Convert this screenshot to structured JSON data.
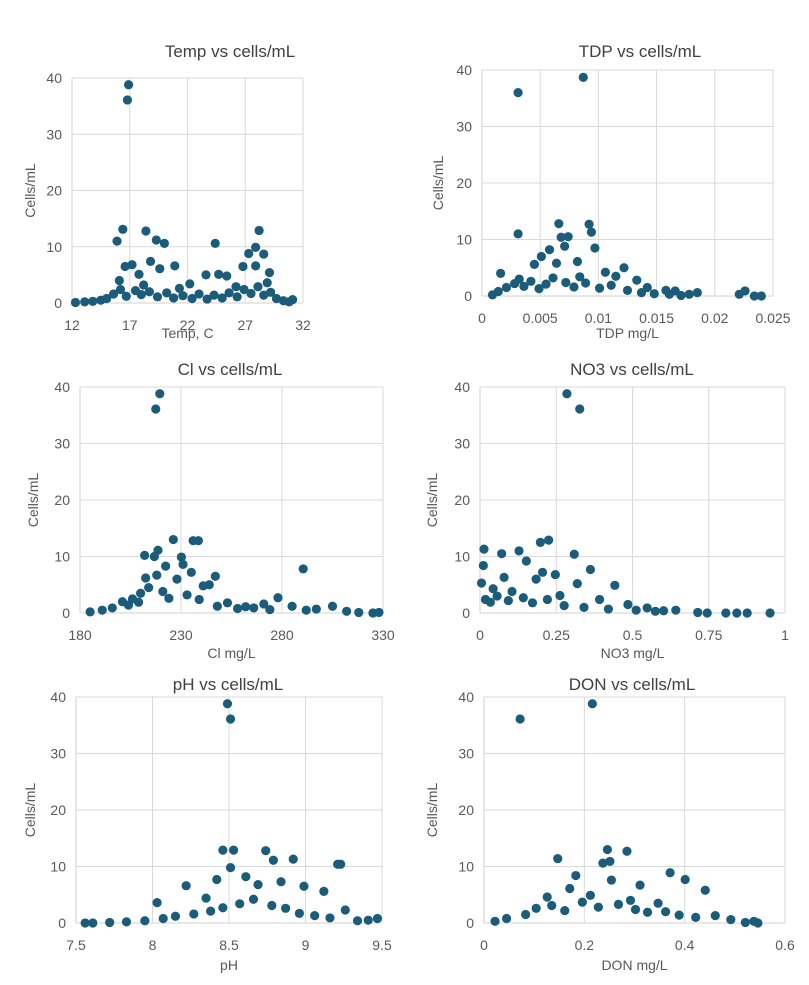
{
  "marker_color": "#1a5c7a",
  "grid_color": "#d9d9d9",
  "chart_data": [
    {
      "type": "scatter",
      "title": "Temp vs cells/mL",
      "xlabel": "Temp, C",
      "ylabel": "Cells/mL",
      "xlim": [
        12,
        32
      ],
      "ylim": [
        0,
        40
      ],
      "xticks": [
        12,
        17,
        22,
        27,
        32
      ],
      "yticks": [
        0,
        10,
        20,
        30,
        40
      ],
      "points": [
        [
          16.9,
          38.8
        ],
        [
          16.8,
          36.1
        ],
        [
          16.4,
          13.1
        ],
        [
          15.9,
          11.0
        ],
        [
          18.4,
          12.8
        ],
        [
          19.3,
          11.2
        ],
        [
          20.0,
          10.6
        ],
        [
          24.4,
          10.6
        ],
        [
          28.2,
          12.9
        ],
        [
          27.9,
          9.9
        ],
        [
          28.6,
          8.7
        ],
        [
          27.3,
          8.8
        ],
        [
          29.1,
          5.4
        ],
        [
          16.6,
          6.5
        ],
        [
          17.2,
          6.8
        ],
        [
          18.8,
          7.4
        ],
        [
          19.6,
          6.1
        ],
        [
          20.9,
          6.6
        ],
        [
          23.6,
          5.0
        ],
        [
          24.7,
          5.1
        ],
        [
          25.4,
          4.8
        ],
        [
          26.8,
          6.5
        ],
        [
          27.9,
          6.6
        ],
        [
          16.1,
          4.0
        ],
        [
          17.8,
          5.1
        ],
        [
          18.2,
          3.2
        ],
        [
          21.3,
          2.6
        ],
        [
          22.2,
          3.4
        ],
        [
          26.2,
          2.9
        ],
        [
          28.9,
          3.6
        ],
        [
          12.3,
          0.1
        ],
        [
          13.1,
          0.2
        ],
        [
          13.8,
          0.3
        ],
        [
          14.5,
          0.5
        ],
        [
          15.0,
          0.8
        ],
        [
          15.6,
          1.6
        ],
        [
          16.2,
          2.4
        ],
        [
          16.7,
          1.2
        ],
        [
          17.5,
          2.2
        ],
        [
          18.0,
          1.5
        ],
        [
          18.7,
          2.0
        ],
        [
          19.4,
          1.1
        ],
        [
          20.2,
          1.8
        ],
        [
          20.8,
          0.9
        ],
        [
          21.6,
          1.3
        ],
        [
          22.4,
          0.8
        ],
        [
          23.0,
          1.6
        ],
        [
          23.7,
          0.7
        ],
        [
          24.3,
          1.4
        ],
        [
          25.0,
          0.9
        ],
        [
          25.6,
          1.8
        ],
        [
          26.3,
          1.1
        ],
        [
          26.9,
          2.4
        ],
        [
          27.5,
          1.7
        ],
        [
          28.1,
          2.9
        ],
        [
          28.6,
          1.4
        ],
        [
          29.2,
          1.9
        ],
        [
          29.7,
          0.8
        ],
        [
          30.3,
          0.4
        ],
        [
          30.8,
          0.2
        ],
        [
          31.1,
          0.6
        ]
      ]
    },
    {
      "type": "scatter",
      "title": "TDP vs cells/mL",
      "xlabel": "TDP mg/L",
      "ylabel": "Cells/mL",
      "xlim": [
        0,
        0.025
      ],
      "ylim": [
        0,
        40
      ],
      "xticks": [
        0,
        0.005,
        0.01,
        0.015,
        0.02,
        0.025
      ],
      "yticks": [
        0,
        10,
        20,
        30,
        40
      ],
      "points": [
        [
          0.0087,
          38.7
        ],
        [
          0.0031,
          36.0
        ],
        [
          0.0066,
          12.8
        ],
        [
          0.0092,
          12.7
        ],
        [
          0.0031,
          11.0
        ],
        [
          0.0068,
          10.4
        ],
        [
          0.0074,
          10.5
        ],
        [
          0.0094,
          11.3
        ],
        [
          0.0097,
          8.5
        ],
        [
          0.0071,
          8.8
        ],
        [
          0.0058,
          8.2
        ],
        [
          0.0051,
          7.0
        ],
        [
          0.0082,
          6.1
        ],
        [
          0.0122,
          5.0
        ],
        [
          0.0016,
          4.0
        ],
        [
          0.0032,
          3.0
        ],
        [
          0.0045,
          5.6
        ],
        [
          0.0064,
          5.8
        ],
        [
          0.0084,
          3.4
        ],
        [
          0.0106,
          4.2
        ],
        [
          0.0115,
          3.5
        ],
        [
          0.0133,
          2.8
        ],
        [
          0.0142,
          1.5
        ],
        [
          0.0158,
          1.0
        ],
        [
          0.0166,
          0.9
        ],
        [
          0.0178,
          0.3
        ],
        [
          0.0185,
          0.6
        ],
        [
          0.0226,
          0.9
        ],
        [
          0.0221,
          0.3
        ],
        [
          0.0234,
          0.0
        ],
        [
          0.024,
          0.0
        ],
        [
          0.0009,
          0.2
        ],
        [
          0.0014,
          0.8
        ],
        [
          0.0021,
          1.5
        ],
        [
          0.0028,
          2.2
        ],
        [
          0.0036,
          1.7
        ],
        [
          0.0042,
          2.6
        ],
        [
          0.0049,
          1.3
        ],
        [
          0.0055,
          2.1
        ],
        [
          0.0061,
          3.2
        ],
        [
          0.0072,
          2.4
        ],
        [
          0.0079,
          1.6
        ],
        [
          0.0089,
          2.3
        ],
        [
          0.0101,
          1.4
        ],
        [
          0.0111,
          1.9
        ],
        [
          0.0125,
          1.0
        ],
        [
          0.0137,
          0.6
        ],
        [
          0.0148,
          0.4
        ],
        [
          0.0161,
          0.3
        ],
        [
          0.0171,
          0.1
        ]
      ]
    },
    {
      "type": "scatter",
      "title": "Cl vs cells/mL",
      "xlabel": "Cl mg/L",
      "ylabel": "Cells/mL",
      "xlim": [
        180,
        330
      ],
      "ylim": [
        0,
        40
      ],
      "xticks": [
        180,
        230,
        280,
        330
      ],
      "yticks": [
        0,
        10,
        20,
        30,
        40
      ],
      "points": [
        [
          219.5,
          38.8
        ],
        [
          217.5,
          36.1
        ],
        [
          226.2,
          13.0
        ],
        [
          236.0,
          12.8
        ],
        [
          238.6,
          12.8
        ],
        [
          218.6,
          11.1
        ],
        [
          212.0,
          10.2
        ],
        [
          216.8,
          10.0
        ],
        [
          230.2,
          9.9
        ],
        [
          222.4,
          8.3
        ],
        [
          231.0,
          8.6
        ],
        [
          235.1,
          7.2
        ],
        [
          290.5,
          7.8
        ],
        [
          212.5,
          6.2
        ],
        [
          218.0,
          6.7
        ],
        [
          228.0,
          6.0
        ],
        [
          244.0,
          5.0
        ],
        [
          247.0,
          6.5
        ],
        [
          241.0,
          4.8
        ],
        [
          201.0,
          2.0
        ],
        [
          206.0,
          2.5
        ],
        [
          210.0,
          3.5
        ],
        [
          214.0,
          4.5
        ],
        [
          221.0,
          3.8
        ],
        [
          233.0,
          3.2
        ],
        [
          239.0,
          2.4
        ],
        [
          253.0,
          1.8
        ],
        [
          262.0,
          1.1
        ],
        [
          271.0,
          1.6
        ],
        [
          278.0,
          2.7
        ],
        [
          285.0,
          1.2
        ],
        [
          297.0,
          0.7
        ],
        [
          305.0,
          1.2
        ],
        [
          185.0,
          0.2
        ],
        [
          191.0,
          0.5
        ],
        [
          196.0,
          0.9
        ],
        [
          204.0,
          1.4
        ],
        [
          209.0,
          1.9
        ],
        [
          224.0,
          2.6
        ],
        [
          248.0,
          1.2
        ],
        [
          258.0,
          0.8
        ],
        [
          266.0,
          0.9
        ],
        [
          274.0,
          0.6
        ],
        [
          292.0,
          0.5
        ],
        [
          312.0,
          0.3
        ],
        [
          318.0,
          0.1
        ],
        [
          325.0,
          0.0
        ],
        [
          328.0,
          0.1
        ]
      ]
    },
    {
      "type": "scatter",
      "title": "NO3 vs cells/mL",
      "xlabel": "NO3 mg/L",
      "ylabel": "Cells/mL",
      "xlim": [
        0,
        1
      ],
      "ylim": [
        0,
        40
      ],
      "xticks": [
        0,
        0.25,
        0.5,
        0.75,
        1
      ],
      "yticks": [
        0,
        10,
        20,
        30,
        40
      ],
      "points": [
        [
          0.285,
          38.8
        ],
        [
          0.327,
          36.1
        ],
        [
          0.013,
          11.3
        ],
        [
          0.071,
          10.5
        ],
        [
          0.128,
          11.0
        ],
        [
          0.198,
          12.5
        ],
        [
          0.225,
          12.9
        ],
        [
          0.309,
          10.4
        ],
        [
          0.152,
          9.2
        ],
        [
          0.011,
          8.4
        ],
        [
          0.205,
          7.2
        ],
        [
          0.247,
          6.8
        ],
        [
          0.362,
          7.7
        ],
        [
          0.079,
          6.3
        ],
        [
          0.184,
          6.0
        ],
        [
          0.319,
          5.2
        ],
        [
          0.442,
          4.9
        ],
        [
          0.005,
          5.3
        ],
        [
          0.043,
          4.3
        ],
        [
          0.105,
          3.8
        ],
        [
          0.262,
          3.1
        ],
        [
          0.392,
          2.4
        ],
        [
          0.485,
          1.5
        ],
        [
          0.548,
          0.9
        ],
        [
          0.602,
          0.4
        ],
        [
          0.642,
          0.5
        ],
        [
          0.714,
          0.1
        ],
        [
          0.745,
          0.0
        ],
        [
          0.806,
          0.0
        ],
        [
          0.842,
          0.0
        ],
        [
          0.876,
          0.0
        ],
        [
          0.951,
          0.0
        ],
        [
          0.018,
          2.4
        ],
        [
          0.034,
          1.9
        ],
        [
          0.056,
          3.0
        ],
        [
          0.093,
          2.2
        ],
        [
          0.142,
          2.7
        ],
        [
          0.172,
          1.8
        ],
        [
          0.221,
          2.4
        ],
        [
          0.276,
          1.3
        ],
        [
          0.341,
          1.0
        ],
        [
          0.421,
          0.7
        ],
        [
          0.512,
          0.5
        ],
        [
          0.575,
          0.3
        ]
      ]
    },
    {
      "type": "scatter",
      "title": "pH vs cells/mL",
      "xlabel": "pH",
      "ylabel": "Cells/mL",
      "xlim": [
        7.5,
        9.5
      ],
      "ylim": [
        0,
        40
      ],
      "xticks": [
        7.5,
        8,
        8.5,
        9,
        9.5
      ],
      "yticks": [
        0,
        10,
        20,
        30,
        40
      ],
      "points": [
        [
          8.49,
          38.8
        ],
        [
          8.51,
          36.1
        ],
        [
          8.46,
          12.9
        ],
        [
          8.53,
          12.9
        ],
        [
          8.74,
          12.8
        ],
        [
          8.79,
          11.1
        ],
        [
          8.92,
          11.3
        ],
        [
          8.51,
          9.8
        ],
        [
          9.21,
          10.4
        ],
        [
          9.23,
          10.4
        ],
        [
          8.42,
          7.7
        ],
        [
          8.22,
          6.6
        ],
        [
          8.61,
          8.2
        ],
        [
          8.69,
          6.8
        ],
        [
          8.84,
          7.3
        ],
        [
          8.99,
          6.5
        ],
        [
          9.12,
          5.6
        ],
        [
          8.03,
          3.6
        ],
        [
          8.35,
          4.4
        ],
        [
          9.26,
          2.3
        ],
        [
          9.34,
          0.4
        ],
        [
          7.56,
          0.0
        ],
        [
          7.61,
          0.0
        ],
        [
          7.72,
          0.1
        ],
        [
          7.83,
          0.2
        ],
        [
          7.95,
          0.4
        ],
        [
          8.07,
          0.8
        ],
        [
          8.15,
          1.2
        ],
        [
          8.27,
          1.6
        ],
        [
          8.38,
          2.1
        ],
        [
          8.46,
          2.7
        ],
        [
          8.57,
          3.4
        ],
        [
          8.66,
          4.2
        ],
        [
          8.78,
          3.1
        ],
        [
          8.87,
          2.6
        ],
        [
          8.96,
          1.7
        ],
        [
          9.06,
          1.3
        ],
        [
          9.16,
          0.9
        ],
        [
          9.41,
          0.5
        ],
        [
          9.47,
          0.8
        ]
      ]
    },
    {
      "type": "scatter",
      "title": "DON vs cells/mL",
      "xlabel": "DON mg/L",
      "ylabel": "Cells/mL",
      "xlim": [
        0,
        0.6
      ],
      "ylim": [
        0,
        40
      ],
      "xticks": [
        0,
        0.2,
        0.4,
        0.6
      ],
      "yticks": [
        0,
        10,
        20,
        30,
        40
      ],
      "points": [
        [
          0.216,
          38.8
        ],
        [
          0.072,
          36.1
        ],
        [
          0.147,
          11.4
        ],
        [
          0.246,
          13.0
        ],
        [
          0.237,
          10.6
        ],
        [
          0.251,
          10.9
        ],
        [
          0.285,
          12.7
        ],
        [
          0.183,
          8.4
        ],
        [
          0.371,
          8.9
        ],
        [
          0.401,
          7.7
        ],
        [
          0.254,
          7.6
        ],
        [
          0.311,
          6.7
        ],
        [
          0.171,
          6.1
        ],
        [
          0.441,
          5.8
        ],
        [
          0.126,
          4.6
        ],
        [
          0.212,
          4.9
        ],
        [
          0.292,
          4.0
        ],
        [
          0.347,
          3.5
        ],
        [
          0.022,
          0.3
        ],
        [
          0.045,
          0.8
        ],
        [
          0.083,
          1.5
        ],
        [
          0.104,
          2.6
        ],
        [
          0.135,
          3.1
        ],
        [
          0.161,
          2.2
        ],
        [
          0.196,
          3.7
        ],
        [
          0.228,
          2.8
        ],
        [
          0.268,
          3.3
        ],
        [
          0.302,
          2.4
        ],
        [
          0.326,
          1.9
        ],
        [
          0.362,
          2.0
        ],
        [
          0.389,
          1.4
        ],
        [
          0.422,
          1.0
        ],
        [
          0.461,
          1.3
        ],
        [
          0.492,
          0.6
        ],
        [
          0.521,
          0.1
        ],
        [
          0.538,
          0.3
        ],
        [
          0.546,
          0.0
        ]
      ]
    }
  ]
}
